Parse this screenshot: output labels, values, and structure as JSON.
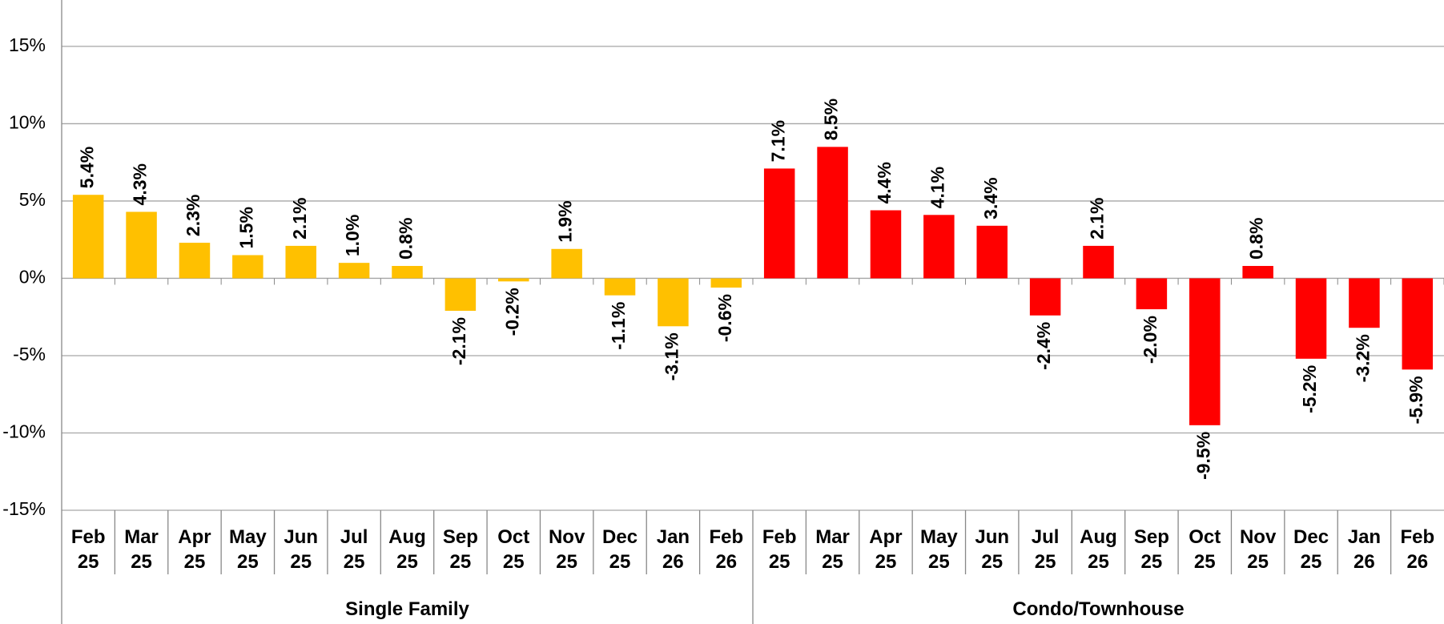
{
  "chart_data": {
    "type": "bar",
    "ylim": [
      -15,
      18
    ],
    "yticks": [
      {
        "value": -15,
        "label": "-15%"
      },
      {
        "value": -10,
        "label": "-10%"
      },
      {
        "value": -5,
        "label": "-5%"
      },
      {
        "value": 0,
        "label": "0%"
      },
      {
        "value": 5,
        "label": "5%"
      },
      {
        "value": 10,
        "label": "10%"
      },
      {
        "value": 15,
        "label": "15%"
      }
    ],
    "grid": true,
    "groups": [
      {
        "name": "Single Family",
        "color": "#FFC000",
        "categories": [
          "Feb 25",
          "Mar 25",
          "Apr 25",
          "May 25",
          "Jun 25",
          "Jul 25",
          "Aug 25",
          "Sep 25",
          "Oct 25",
          "Nov 25",
          "Dec 25",
          "Jan 26",
          "Feb 26"
        ],
        "values": [
          5.4,
          4.3,
          2.3,
          1.5,
          2.1,
          1.0,
          0.8,
          -2.1,
          -0.2,
          1.9,
          -1.1,
          -3.1,
          -0.6
        ],
        "value_labels": [
          "5.4%",
          "4.3%",
          "2.3%",
          "1.5%",
          "2.1%",
          "1.0%",
          "0.8%",
          "-2.1%",
          "-0.2%",
          "1.9%",
          "-1.1%",
          "-3.1%",
          "-0.6%"
        ]
      },
      {
        "name": "Condo/Townhouse",
        "color": "#FF0000",
        "categories": [
          "Feb 25",
          "Mar 25",
          "Apr 25",
          "May 25",
          "Jun 25",
          "Jul 25",
          "Aug 25",
          "Sep 25",
          "Oct 25",
          "Nov 25",
          "Dec 25",
          "Jan 26",
          "Feb 26"
        ],
        "values": [
          7.1,
          8.5,
          4.4,
          4.1,
          3.4,
          -2.4,
          2.1,
          -2.0,
          -9.5,
          0.8,
          -5.2,
          -3.2,
          -5.9
        ],
        "value_labels": [
          "7.1%",
          "8.5%",
          "4.4%",
          "4.1%",
          "3.4%",
          "-2.4%",
          "2.1%",
          "-2.0%",
          "-9.5%",
          "0.8%",
          "-5.2%",
          "-3.2%",
          "-5.9%"
        ]
      }
    ]
  }
}
